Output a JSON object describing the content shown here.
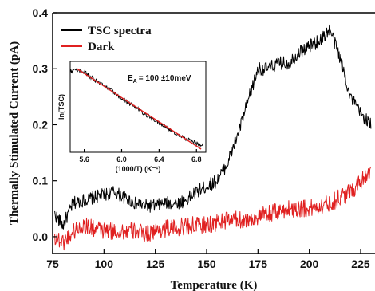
{
  "chart_data": [
    {
      "type": "line",
      "xlabel": "Temperature (K)",
      "ylabel": "Thermally Stimulated Current (pA)",
      "xlim": [
        75,
        232
      ],
      "ylim": [
        -0.03,
        0.4
      ],
      "x_ticks": [
        75,
        100,
        125,
        150,
        175,
        200,
        225
      ],
      "x_tick_labels": [
        "75",
        "100",
        "125",
        "150",
        "175",
        "200",
        "225"
      ],
      "y_ticks": [
        0.0,
        0.1,
        0.2,
        0.3,
        0.4
      ],
      "y_tick_labels": [
        "0.0",
        "0.1",
        "0.2",
        "0.3",
        "0.4"
      ],
      "legend_position": "top-left",
      "series": [
        {
          "name": "TSC spectra",
          "color": "#000000",
          "x": [
            76,
            80,
            85,
            90,
            95,
            100,
            105,
            110,
            115,
            120,
            125,
            130,
            135,
            140,
            145,
            150,
            155,
            160,
            165,
            170,
            175,
            180,
            185,
            190,
            195,
            200,
            205,
            210,
            215,
            220,
            225,
            230
          ],
          "y": [
            0.04,
            0.02,
            0.06,
            0.065,
            0.07,
            0.075,
            0.08,
            0.07,
            0.06,
            0.055,
            0.055,
            0.06,
            0.06,
            0.065,
            0.08,
            0.09,
            0.1,
            0.13,
            0.18,
            0.24,
            0.3,
            0.3,
            0.31,
            0.31,
            0.33,
            0.34,
            0.35,
            0.37,
            0.32,
            0.25,
            0.22,
            0.2
          ]
        },
        {
          "name": "Dark",
          "color": "#e02020",
          "x": [
            76,
            80,
            85,
            90,
            95,
            100,
            105,
            110,
            115,
            120,
            125,
            130,
            135,
            140,
            145,
            150,
            155,
            160,
            165,
            170,
            175,
            180,
            185,
            190,
            195,
            200,
            205,
            210,
            215,
            220,
            225,
            230
          ],
          "y": [
            0.0,
            -0.01,
            0.01,
            0.02,
            0.015,
            0.01,
            0.01,
            0.01,
            0.01,
            0.005,
            0.01,
            0.015,
            0.015,
            0.02,
            0.02,
            0.02,
            0.025,
            0.03,
            0.03,
            0.03,
            0.035,
            0.04,
            0.045,
            0.05,
            0.05,
            0.05,
            0.055,
            0.06,
            0.07,
            0.08,
            0.1,
            0.12
          ]
        }
      ]
    },
    {
      "type": "line",
      "xlabel": "(1000/T) (K⁻¹)",
      "ylabel": "ln(TSC)",
      "xlim": [
        5.45,
        6.9
      ],
      "x_ticks": [
        5.6,
        6.0,
        6.4,
        6.8
      ],
      "x_tick_labels": [
        "5.6",
        "6.0",
        "6.4",
        "6.8"
      ],
      "annotation_prefix": "E",
      "annotation_subscript": "A",
      "annotation_value": "= 100 ±10meV",
      "series": [
        {
          "color": "#000000",
          "x": [
            5.45,
            5.5,
            5.6,
            5.7,
            5.8,
            5.9,
            6.0,
            6.1,
            6.2,
            6.3,
            6.4,
            6.5,
            6.6,
            6.7,
            6.8,
            6.88
          ],
          "y": [
            0.96,
            0.97,
            0.95,
            0.86,
            0.79,
            0.72,
            0.62,
            0.55,
            0.47,
            0.39,
            0.32,
            0.25,
            0.18,
            0.12,
            0.07,
            0.04
          ]
        },
        {
          "color": "#e02020",
          "fit": true,
          "x": [
            5.52,
            6.85
          ],
          "y": [
            0.99,
            0.0
          ]
        }
      ]
    }
  ],
  "style": {
    "main_series_colors": [
      "#000000",
      "#e02020"
    ]
  }
}
